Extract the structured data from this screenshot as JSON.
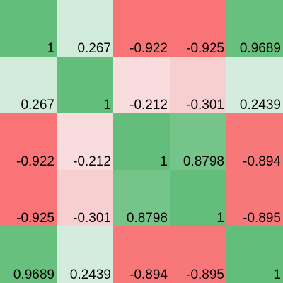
{
  "chart_data": {
    "type": "heatmap",
    "rows": 5,
    "cols": 5,
    "matrix": [
      [
        "1",
        "0.267",
        "-0.922",
        "-0.925",
        "0.9689"
      ],
      [
        "0.267",
        "1",
        "-0.212",
        "-0.301",
        "0.2439"
      ],
      [
        "-0.922",
        "-0.212",
        "1",
        "0.8798",
        "-0.894"
      ],
      [
        "-0.925",
        "-0.301",
        "0.8798",
        "1",
        "-0.895"
      ],
      [
        "0.9689",
        "0.2439",
        "-0.894",
        "-0.895",
        "1"
      ]
    ],
    "color_scale": {
      "positive": "#63be7b",
      "neutral": "#f8fbfd",
      "negative": "#f8696b"
    }
  }
}
